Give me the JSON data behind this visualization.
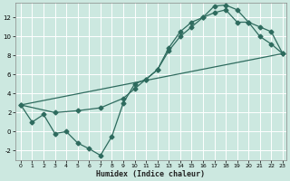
{
  "xlabel": "Humidex (Indice chaleur)",
  "bg_color": "#cce8e0",
  "grid_color": "#ffffff",
  "line_color": "#2e6b5e",
  "xlim": [
    0,
    23
  ],
  "ylim": [
    -3.0,
    13.5
  ],
  "xticks": [
    0,
    1,
    2,
    3,
    4,
    5,
    6,
    7,
    8,
    9,
    10,
    11,
    12,
    13,
    14,
    15,
    16,
    17,
    18,
    19,
    20,
    21,
    22,
    23
  ],
  "yticks": [
    -2,
    0,
    2,
    4,
    6,
    8,
    10,
    12
  ],
  "series1_x": [
    0,
    1,
    2,
    3,
    4,
    5,
    6,
    7,
    8,
    9,
    10,
    11,
    12,
    13,
    14,
    15,
    16,
    17,
    18,
    19,
    20,
    21,
    22,
    23
  ],
  "series1_y": [
    2.8,
    1.0,
    1.8,
    -0.2,
    0.0,
    -1.2,
    -1.8,
    -2.5,
    -0.5,
    3.0,
    5.0,
    5.5,
    6.5,
    8.8,
    10.5,
    11.5,
    12.0,
    13.2,
    13.3,
    12.8,
    11.5,
    10.0,
    9.2,
    8.2
  ],
  "series2_x": [
    0,
    3,
    5,
    7,
    9,
    10,
    11,
    12,
    13,
    14,
    15,
    16,
    17,
    18,
    19,
    20,
    21,
    22,
    23
  ],
  "series2_y": [
    2.8,
    2.0,
    2.2,
    2.5,
    3.5,
    4.5,
    5.5,
    6.5,
    8.5,
    10.0,
    11.0,
    12.0,
    12.5,
    12.8,
    11.5,
    11.5,
    11.0,
    10.5,
    8.2
  ],
  "series3_x": [
    0,
    23
  ],
  "series3_y": [
    2.8,
    8.2
  ],
  "markersize": 2.5,
  "linewidth": 0.9
}
